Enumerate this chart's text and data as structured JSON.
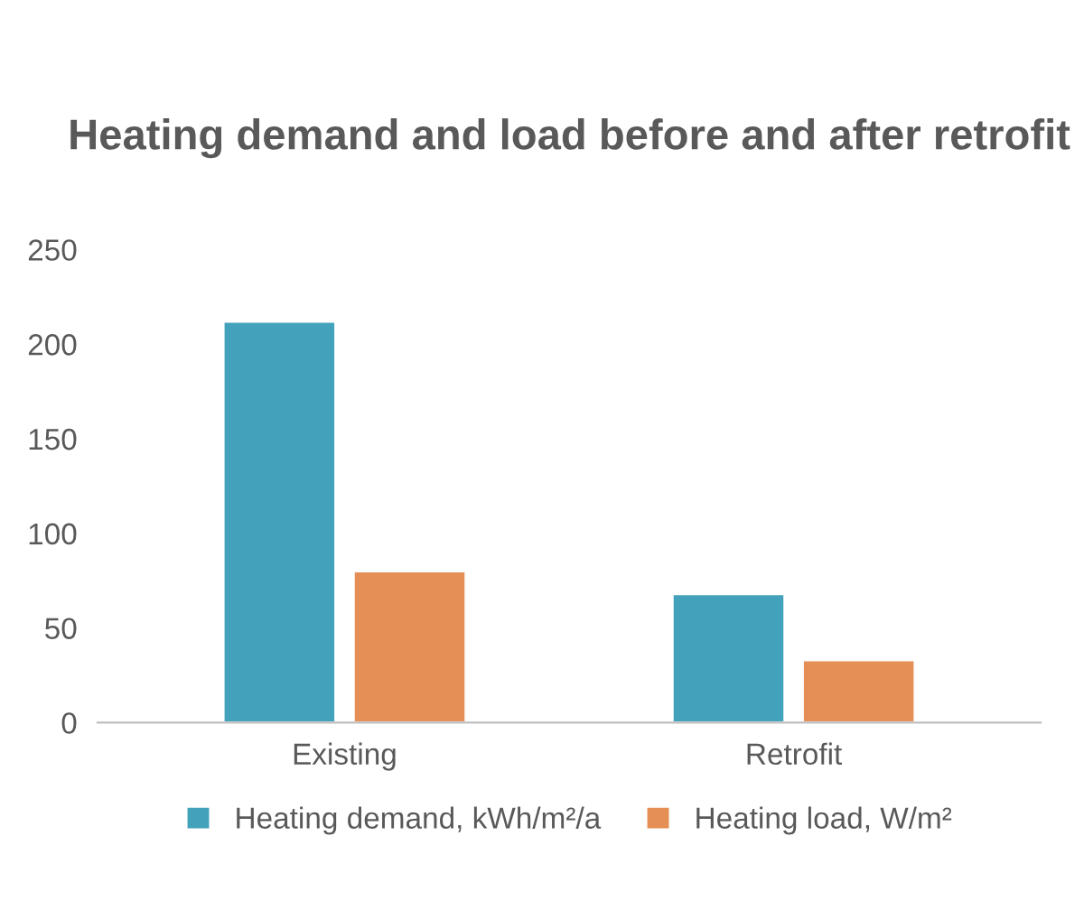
{
  "chart_data": {
    "type": "bar",
    "title": "Heating demand and load before and after retrofit",
    "categories": [
      "Existing",
      "Retrofit"
    ],
    "series": [
      {
        "name": "Heating demand, kWh/m²/a",
        "color": "#43a2bb",
        "values": [
          212,
          68
        ]
      },
      {
        "name": "Heating load, W/m²",
        "color": "#e58e55",
        "values": [
          80,
          33
        ]
      }
    ],
    "ylim": [
      0,
      250
    ],
    "yticks": [
      0,
      50,
      100,
      150,
      200,
      250
    ],
    "grid": false,
    "legend": "bottom"
  }
}
